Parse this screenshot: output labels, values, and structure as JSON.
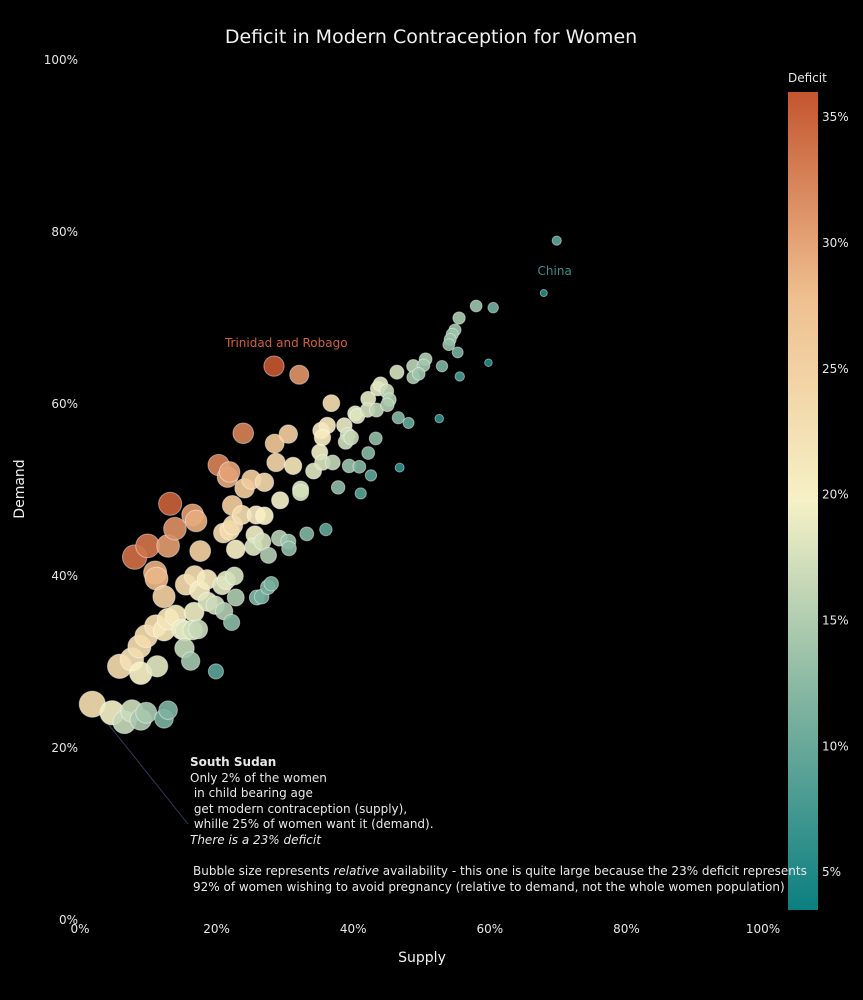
{
  "chart_data": {
    "type": "scatter",
    "title": "Deficit in Modern Contraception for Women",
    "xlabel": "Supply",
    "ylabel": "Demand",
    "xlim": [
      0,
      100
    ],
    "ylim": [
      0,
      100
    ],
    "x_ticks": [
      "0%",
      "20%",
      "40%",
      "60%",
      "80%",
      "100%"
    ],
    "y_ticks": [
      "0%",
      "20%",
      "40%",
      "60%",
      "80%",
      "100%"
    ],
    "colorbar": {
      "title": "Deficit",
      "range": [
        3.5,
        36
      ],
      "ticks": [
        "5%",
        "10%",
        "15%",
        "20%",
        "25%",
        "30%",
        "35%"
      ],
      "tick_values": [
        5,
        10,
        15,
        20,
        25,
        30,
        35
      ],
      "colors": [
        "#0b7f80",
        "#7fb3a0",
        "#f6f1c6",
        "#efbf8f",
        "#c4552f"
      ]
    },
    "labels": [
      {
        "text": "Trinidad and Robago",
        "x": 30.2,
        "y": 66.6,
        "color": "#d0613a"
      },
      {
        "text": "China",
        "x": 69.5,
        "y": 75.0,
        "color": "#3e9088"
      }
    ],
    "annotation": {
      "title": "South Sudan",
      "lines": [
        "Only 2% of the women",
        " in child bearing age",
        " get modern contraception (supply),",
        " whille 25% of women want it (demand)."
      ],
      "italic_line": "There is a 23% deficit",
      "note_pre": "Bubble size represents ",
      "note_em": "relative",
      "note_post": " availability - this one is quite large because the 23% deficit represents",
      "note_line2": "92% of women wishing to avoid pregnancy (relative to demand, not the whole women population)"
    },
    "points": [
      {
        "x": 1.8,
        "y": 25.1,
        "deficit": 23.3
      },
      {
        "x": 4.7,
        "y": 24.1,
        "deficit": 19.4
      },
      {
        "x": 6.5,
        "y": 23.0,
        "deficit": 16.5
      },
      {
        "x": 7.6,
        "y": 24.3,
        "deficit": 16.7
      },
      {
        "x": 8.9,
        "y": 23.3,
        "deficit": 14.4
      },
      {
        "x": 9.7,
        "y": 24.1,
        "deficit": 14.4
      },
      {
        "x": 12.3,
        "y": 23.4,
        "deficit": 11.1
      },
      {
        "x": 12.9,
        "y": 24.4,
        "deficit": 11.5
      },
      {
        "x": 5.8,
        "y": 29.5,
        "deficit": 23.7
      },
      {
        "x": 7.6,
        "y": 30.3,
        "deficit": 22.7
      },
      {
        "x": 8.9,
        "y": 28.7,
        "deficit": 19.8
      },
      {
        "x": 8.7,
        "y": 31.8,
        "deficit": 23.1
      },
      {
        "x": 9.7,
        "y": 33.0,
        "deficit": 23.3
      },
      {
        "x": 11.3,
        "y": 29.5,
        "deficit": 18.2
      },
      {
        "x": 11.1,
        "y": 34.2,
        "deficit": 23.1
      },
      {
        "x": 12.3,
        "y": 33.7,
        "deficit": 21.4
      },
      {
        "x": 12.9,
        "y": 35.0,
        "deficit": 22.1
      },
      {
        "x": 14.0,
        "y": 35.4,
        "deficit": 21.4
      },
      {
        "x": 14.9,
        "y": 33.8,
        "deficit": 18.9
      },
      {
        "x": 15.4,
        "y": 33.6,
        "deficit": 18.2
      },
      {
        "x": 16.5,
        "y": 33.7,
        "deficit": 17.2
      },
      {
        "x": 15.3,
        "y": 31.6,
        "deficit": 16.3
      },
      {
        "x": 16.2,
        "y": 30.1,
        "deficit": 13.9
      },
      {
        "x": 17.3,
        "y": 33.8,
        "deficit": 16.5
      },
      {
        "x": 19.9,
        "y": 28.9,
        "deficit": 9.0
      },
      {
        "x": 22.2,
        "y": 34.6,
        "deficit": 12.4
      },
      {
        "x": 11.2,
        "y": 39.7,
        "deficit": 28.5
      },
      {
        "x": 11.0,
        "y": 40.4,
        "deficit": 29.4
      },
      {
        "x": 12.3,
        "y": 37.6,
        "deficit": 25.3
      },
      {
        "x": 15.5,
        "y": 39.0,
        "deficit": 23.5
      },
      {
        "x": 16.8,
        "y": 40.0,
        "deficit": 23.2
      },
      {
        "x": 17.5,
        "y": 38.3,
        "deficit": 20.8
      },
      {
        "x": 16.7,
        "y": 35.8,
        "deficit": 19.1
      },
      {
        "x": 18.6,
        "y": 39.6,
        "deficit": 21.0
      },
      {
        "x": 18.7,
        "y": 37.0,
        "deficit": 18.3
      },
      {
        "x": 19.8,
        "y": 36.6,
        "deficit": 16.8
      },
      {
        "x": 20.8,
        "y": 38.9,
        "deficit": 18.1
      },
      {
        "x": 21.4,
        "y": 39.5,
        "deficit": 18.1
      },
      {
        "x": 21.1,
        "y": 35.9,
        "deficit": 14.8
      },
      {
        "x": 22.6,
        "y": 40.0,
        "deficit": 17.4
      },
      {
        "x": 22.8,
        "y": 37.5,
        "deficit": 14.7
      },
      {
        "x": 25.9,
        "y": 37.5,
        "deficit": 11.6
      },
      {
        "x": 26.6,
        "y": 37.6,
        "deficit": 11.0
      },
      {
        "x": 27.5,
        "y": 38.7,
        "deficit": 11.2
      },
      {
        "x": 28.0,
        "y": 39.1,
        "deficit": 11.1
      },
      {
        "x": 8.0,
        "y": 42.2,
        "deficit": 34.2
      },
      {
        "x": 9.9,
        "y": 43.5,
        "deficit": 33.6
      },
      {
        "x": 12.9,
        "y": 43.5,
        "deficit": 30.6
      },
      {
        "x": 13.2,
        "y": 48.4,
        "deficit": 35.2
      },
      {
        "x": 13.9,
        "y": 45.5,
        "deficit": 31.6
      },
      {
        "x": 16.5,
        "y": 47.1,
        "deficit": 30.6
      },
      {
        "x": 17.0,
        "y": 46.4,
        "deficit": 29.4
      },
      {
        "x": 17.6,
        "y": 42.9,
        "deficit": 25.3
      },
      {
        "x": 20.3,
        "y": 52.9,
        "deficit": 32.6
      },
      {
        "x": 21.6,
        "y": 51.5,
        "deficit": 29.9
      },
      {
        "x": 21.9,
        "y": 52.1,
        "deficit": 30.2
      },
      {
        "x": 22.3,
        "y": 48.2,
        "deficit": 25.9
      },
      {
        "x": 21.0,
        "y": 45.0,
        "deficit": 24.0
      },
      {
        "x": 21.9,
        "y": 45.3,
        "deficit": 23.4
      },
      {
        "x": 22.4,
        "y": 45.9,
        "deficit": 23.5
      },
      {
        "x": 22.8,
        "y": 43.1,
        "deficit": 20.3
      },
      {
        "x": 23.7,
        "y": 47.1,
        "deficit": 23.4
      },
      {
        "x": 24.1,
        "y": 50.2,
        "deficit": 26.1
      },
      {
        "x": 23.9,
        "y": 56.6,
        "deficit": 32.7
      },
      {
        "x": 25.1,
        "y": 51.2,
        "deficit": 26.1
      },
      {
        "x": 25.8,
        "y": 47.1,
        "deficit": 21.3
      },
      {
        "x": 25.6,
        "y": 44.8,
        "deficit": 19.2
      },
      {
        "x": 25.4,
        "y": 43.4,
        "deficit": 18.0
      },
      {
        "x": 27.0,
        "y": 50.9,
        "deficit": 23.9
      },
      {
        "x": 27.0,
        "y": 47.0,
        "deficit": 20.0
      },
      {
        "x": 26.7,
        "y": 44.0,
        "deficit": 17.3
      },
      {
        "x": 27.6,
        "y": 42.4,
        "deficit": 14.8
      },
      {
        "x": 28.5,
        "y": 55.4,
        "deficit": 26.9
      },
      {
        "x": 28.4,
        "y": 64.4,
        "deficit": 36.0
      },
      {
        "x": 28.7,
        "y": 53.2,
        "deficit": 24.5
      },
      {
        "x": 29.3,
        "y": 48.8,
        "deficit": 19.5
      },
      {
        "x": 29.2,
        "y": 44.4,
        "deficit": 15.2
      },
      {
        "x": 30.5,
        "y": 56.5,
        "deficit": 26.0
      },
      {
        "x": 31.2,
        "y": 52.8,
        "deficit": 21.6
      },
      {
        "x": 30.5,
        "y": 44.0,
        "deficit": 13.5
      },
      {
        "x": 30.6,
        "y": 43.2,
        "deficit": 12.6
      },
      {
        "x": 32.1,
        "y": 63.4,
        "deficit": 31.3
      },
      {
        "x": 32.3,
        "y": 49.7,
        "deficit": 17.4
      },
      {
        "x": 32.3,
        "y": 50.1,
        "deficit": 17.8
      },
      {
        "x": 33.2,
        "y": 44.9,
        "deficit": 11.7
      },
      {
        "x": 34.2,
        "y": 52.2,
        "deficit": 18.0
      },
      {
        "x": 35.1,
        "y": 54.4,
        "deficit": 19.3
      },
      {
        "x": 35.5,
        "y": 56.1,
        "deficit": 20.6
      },
      {
        "x": 35.3,
        "y": 56.9,
        "deficit": 21.6
      },
      {
        "x": 35.5,
        "y": 53.2,
        "deficit": 17.7
      },
      {
        "x": 36.0,
        "y": 45.4,
        "deficit": 9.4
      },
      {
        "x": 36.2,
        "y": 57.5,
        "deficit": 21.3
      },
      {
        "x": 36.8,
        "y": 60.1,
        "deficit": 23.3
      },
      {
        "x": 37.0,
        "y": 53.2,
        "deficit": 16.2
      },
      {
        "x": 37.8,
        "y": 50.3,
        "deficit": 12.5
      },
      {
        "x": 38.7,
        "y": 57.5,
        "deficit": 18.8
      },
      {
        "x": 38.9,
        "y": 55.6,
        "deficit": 16.7
      },
      {
        "x": 39.2,
        "y": 56.4,
        "deficit": 17.2
      },
      {
        "x": 39.4,
        "y": 52.8,
        "deficit": 13.4
      },
      {
        "x": 39.7,
        "y": 56.1,
        "deficit": 16.4
      },
      {
        "x": 40.3,
        "y": 58.9,
        "deficit": 18.6
      },
      {
        "x": 40.6,
        "y": 58.6,
        "deficit": 18.0
      },
      {
        "x": 40.9,
        "y": 52.7,
        "deficit": 11.8
      },
      {
        "x": 41.1,
        "y": 49.6,
        "deficit": 8.5
      },
      {
        "x": 42.1,
        "y": 59.3,
        "deficit": 17.2
      },
      {
        "x": 42.2,
        "y": 60.6,
        "deficit": 18.4
      },
      {
        "x": 42.2,
        "y": 54.3,
        "deficit": 12.1
      },
      {
        "x": 42.6,
        "y": 51.7,
        "deficit": 9.1
      },
      {
        "x": 43.3,
        "y": 56.0,
        "deficit": 12.7
      },
      {
        "x": 43.4,
        "y": 59.3,
        "deficit": 15.9
      },
      {
        "x": 43.6,
        "y": 61.8,
        "deficit": 18.2
      },
      {
        "x": 44.0,
        "y": 62.3,
        "deficit": 18.3
      },
      {
        "x": 44.9,
        "y": 61.5,
        "deficit": 16.6
      },
      {
        "x": 45.0,
        "y": 59.9,
        "deficit": 14.9
      },
      {
        "x": 45.3,
        "y": 60.5,
        "deficit": 15.2
      },
      {
        "x": 46.4,
        "y": 63.7,
        "deficit": 17.3
      },
      {
        "x": 46.6,
        "y": 58.4,
        "deficit": 11.8
      },
      {
        "x": 46.8,
        "y": 52.6,
        "deficit": 5.8
      },
      {
        "x": 48.1,
        "y": 57.8,
        "deficit": 9.7
      },
      {
        "x": 48.8,
        "y": 63.1,
        "deficit": 14.3
      },
      {
        "x": 48.8,
        "y": 64.4,
        "deficit": 15.6
      },
      {
        "x": 49.6,
        "y": 63.5,
        "deficit": 13.9
      },
      {
        "x": 50.3,
        "y": 64.5,
        "deficit": 14.2
      },
      {
        "x": 50.6,
        "y": 65.2,
        "deficit": 14.6
      },
      {
        "x": 52.6,
        "y": 58.3,
        "deficit": 5.7
      },
      {
        "x": 53.0,
        "y": 64.4,
        "deficit": 11.4
      },
      {
        "x": 54.0,
        "y": 66.9,
        "deficit": 12.9
      },
      {
        "x": 54.2,
        "y": 67.5,
        "deficit": 13.3
      },
      {
        "x": 54.5,
        "y": 68.1,
        "deficit": 13.6
      },
      {
        "x": 54.9,
        "y": 68.6,
        "deficit": 13.7
      },
      {
        "x": 55.3,
        "y": 66.0,
        "deficit": 10.7
      },
      {
        "x": 55.5,
        "y": 70.0,
        "deficit": 14.5
      },
      {
        "x": 55.6,
        "y": 63.2,
        "deficit": 7.6
      },
      {
        "x": 58.0,
        "y": 71.4,
        "deficit": 13.4
      },
      {
        "x": 59.8,
        "y": 64.8,
        "deficit": 5.0
      },
      {
        "x": 60.5,
        "y": 71.2,
        "deficit": 10.7
      },
      {
        "x": 67.9,
        "y": 72.9,
        "deficit": 5.0
      },
      {
        "x": 69.8,
        "y": 79.0,
        "deficit": 9.2
      }
    ]
  }
}
